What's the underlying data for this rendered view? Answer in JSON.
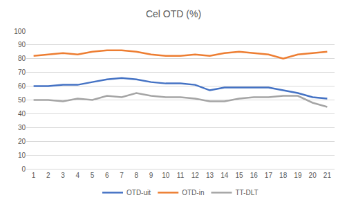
{
  "chart_data": {
    "type": "line",
    "title": "Cel OTD (%)",
    "categories": [
      "1",
      "2",
      "3",
      "4",
      "5",
      "6",
      "7",
      "8",
      "9",
      "10",
      "11",
      "12",
      "13",
      "14",
      "15",
      "16",
      "17",
      "18",
      "19",
      "20",
      "21"
    ],
    "series": [
      {
        "name": "OTD-uit",
        "color": "#4472c4",
        "values": [
          60,
          60,
          61,
          61,
          63,
          65,
          66,
          65,
          63,
          62,
          62,
          61,
          57,
          59,
          59,
          59,
          59,
          57,
          55,
          52,
          51
        ]
      },
      {
        "name": "OTD-in",
        "color": "#ed7d31",
        "values": [
          82,
          83,
          84,
          83,
          85,
          86,
          86,
          85,
          83,
          82,
          82,
          83,
          82,
          84,
          85,
          84,
          83,
          80,
          83,
          84,
          85
        ]
      },
      {
        "name": "TT-DLT",
        "color": "#a5a5a5",
        "values": [
          50,
          50,
          49,
          51,
          50,
          53,
          52,
          55,
          53,
          52,
          52,
          51,
          49,
          49,
          51,
          52,
          52,
          53,
          53,
          48,
          45
        ]
      }
    ],
    "ylim": [
      0,
      100
    ],
    "yticks": [
      0,
      10,
      20,
      30,
      40,
      50,
      60,
      70,
      80,
      90,
      100
    ],
    "grid": true,
    "legend": "bottom"
  }
}
